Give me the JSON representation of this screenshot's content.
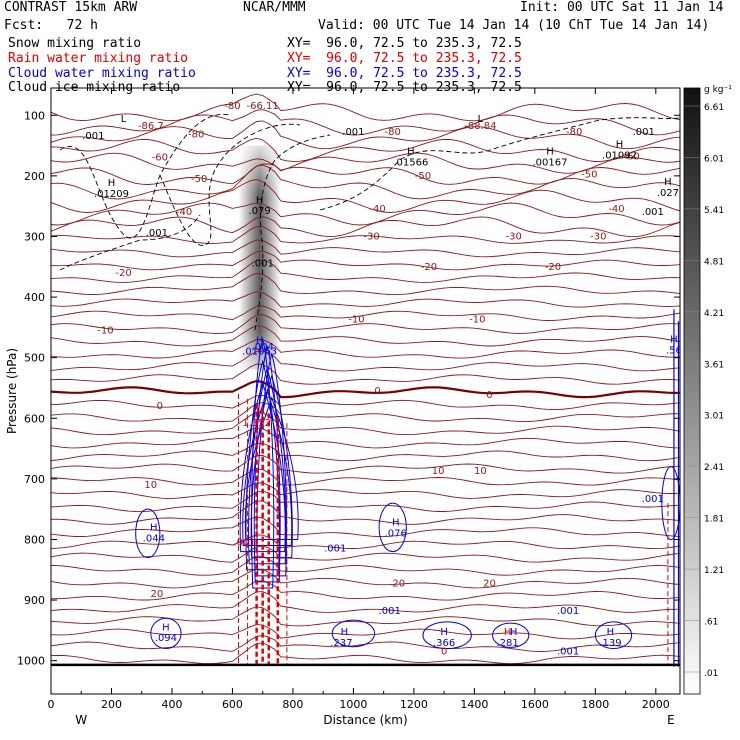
{
  "header": {
    "title": "CONTRAST 15km ARW",
    "center": "NCAR/MMM",
    "init": "Init: 00 UTC Sat 11 Jan 14",
    "fcst": "Fcst:   72 h",
    "valid": "Valid: 00 UTC Tue 14 Jan 14 (10 ChT Tue 14 Jan 14)"
  },
  "fields": [
    {
      "name": "Snow mixing ratio",
      "xy": "XY=  96.0, 72.5 to 235.3, 72.5",
      "color": "#000000"
    },
    {
      "name": "Rain water mixing ratio",
      "xy": "XY=  96.0, 72.5 to 235.3, 72.5",
      "color": "#e00000"
    },
    {
      "name": "Cloud water mixing ratio",
      "xy": "XY=  96.0, 72.5 to 235.3, 72.5",
      "color": "#0000e0"
    },
    {
      "name": "Cloud ice mixing ratio",
      "xy": "XY=  96.0, 72.5 to 235.3, 72.5",
      "color": "#000000"
    }
  ],
  "colors": {
    "temp": "#8b1a1a",
    "temp_zero": "#7a0000",
    "rain": "#e00000",
    "cloud": "#0000e0",
    "snow": "#000000",
    "ground": "#000000"
  },
  "chart_data": {
    "type": "cross-section contour",
    "xlabel": "Distance (km)",
    "ylabel": "Pressure (hPa)",
    "xlim": [
      0,
      2080
    ],
    "ylim": [
      1055,
      55
    ],
    "x_ticks": [
      0,
      200,
      400,
      600,
      800,
      1000,
      1200,
      1400,
      1600,
      1800,
      2000
    ],
    "y_ticks": [
      100,
      200,
      300,
      400,
      500,
      600,
      700,
      800,
      900,
      1000
    ],
    "end_labels": {
      "left": "W",
      "right": "E"
    },
    "colorbar": {
      "unit": "g kg⁻¹",
      "ticks": [
        ".01",
        ".61",
        "1.21",
        "1.81",
        "2.41",
        "3.01",
        "3.61",
        "4.21",
        "4.81",
        "5.41",
        "6.01",
        "6.61"
      ]
    },
    "temperature_labels": [
      {
        "text": "-86.7",
        "x": 330,
        "p": 118
      },
      {
        "text": "-80",
        "x": 600,
        "p": 85
      },
      {
        "text": "-80",
        "x": 480,
        "p": 132
      },
      {
        "text": "-66.11",
        "x": 700,
        "p": 85
      },
      {
        "text": "-88.84",
        "x": 1420,
        "p": 118
      },
      {
        "text": "-80",
        "x": 1130,
        "p": 128
      },
      {
        "text": "-80",
        "x": 1730,
        "p": 128
      },
      {
        "text": "-60",
        "x": 360,
        "p": 170
      },
      {
        "text": "-60",
        "x": 1920,
        "p": 168
      },
      {
        "text": "-50",
        "x": 490,
        "p": 205
      },
      {
        "text": "-50",
        "x": 1230,
        "p": 200
      },
      {
        "text": "-50",
        "x": 1780,
        "p": 198
      },
      {
        "text": "-40",
        "x": 440,
        "p": 260
      },
      {
        "text": "-40",
        "x": 1080,
        "p": 255
      },
      {
        "text": "-40",
        "x": 1870,
        "p": 255
      },
      {
        "text": "-30",
        "x": 1060,
        "p": 300
      },
      {
        "text": "-30",
        "x": 1530,
        "p": 300
      },
      {
        "text": "-30",
        "x": 1810,
        "p": 300
      },
      {
        "text": "-20",
        "x": 240,
        "p": 360
      },
      {
        "text": "-20",
        "x": 1250,
        "p": 350
      },
      {
        "text": "-20",
        "x": 1660,
        "p": 350
      },
      {
        "text": "-10",
        "x": 180,
        "p": 455
      },
      {
        "text": "-10",
        "x": 1010,
        "p": 437
      },
      {
        "text": "-10",
        "x": 1410,
        "p": 437
      },
      {
        "text": "0",
        "x": 360,
        "p": 580
      },
      {
        "text": "0",
        "x": 1080,
        "p": 555
      },
      {
        "text": "0",
        "x": 1450,
        "p": 562
      },
      {
        "text": "10",
        "x": 330,
        "p": 710
      },
      {
        "text": "10",
        "x": 1280,
        "p": 687
      },
      {
        "text": "10",
        "x": 1420,
        "p": 687
      },
      {
        "text": "20",
        "x": 350,
        "p": 890
      },
      {
        "text": "20",
        "x": 1150,
        "p": 873
      },
      {
        "text": "20",
        "x": 1450,
        "p": 873
      }
    ],
    "snow_labels": [
      {
        "text": ".001",
        "x": 140,
        "p": 134
      },
      {
        "text": ".001",
        "x": 1000,
        "p": 128
      },
      {
        "text": ".001",
        "x": 1960,
        "p": 128
      },
      {
        "text": ".001",
        "x": 350,
        "p": 294
      },
      {
        "text": ".001",
        "x": 1990,
        "p": 260
      },
      {
        "text": ".001",
        "x": 700,
        "p": 345
      },
      {
        "text": "H",
        "x": 200,
        "p": 212
      },
      {
        "text": ".01209",
        "x": 200,
        "p": 230
      },
      {
        "text": "H",
        "x": 1190,
        "p": 160
      },
      {
        "text": ".01566",
        "x": 1190,
        "p": 178
      },
      {
        "text": "H",
        "x": 1650,
        "p": 160
      },
      {
        "text": ".00167",
        "x": 1650,
        "p": 178
      },
      {
        "text": "H",
        "x": 1880,
        "p": 148
      },
      {
        "text": ".01092",
        "x": 1880,
        "p": 166
      },
      {
        "text": "H",
        "x": 2040,
        "p": 210
      },
      {
        "text": ".027",
        "x": 2040,
        "p": 228
      },
      {
        "text": "H",
        "x": 690,
        "p": 240
      },
      {
        "text": ".079",
        "x": 690,
        "p": 258
      },
      {
        "text": "L",
        "x": 240,
        "p": 106
      },
      {
        "text": "L",
        "x": 1420,
        "p": 106
      }
    ],
    "cloud_labels": [
      {
        "text": "H",
        "x": 340,
        "p": 780
      },
      {
        "text": ".044",
        "x": 340,
        "p": 798
      },
      {
        "text": "H",
        "x": 380,
        "p": 945
      },
      {
        "text": ".094",
        "x": 380,
        "p": 963
      },
      {
        "text": ".001",
        "x": 940,
        "p": 815
      },
      {
        "text": "H",
        "x": 1140,
        "p": 772
      },
      {
        "text": ".076",
        "x": 1140,
        "p": 790
      },
      {
        "text": ".001",
        "x": 1120,
        "p": 918
      },
      {
        "text": "H",
        "x": 970,
        "p": 953
      },
      {
        "text": ".237",
        "x": 960,
        "p": 971
      },
      {
        "text": "H",
        "x": 1300,
        "p": 953
      },
      {
        "text": ".366",
        "x": 1300,
        "p": 971
      },
      {
        "text": "H",
        "x": 1530,
        "p": 953
      },
      {
        "text": ".281",
        "x": 1510,
        "p": 971
      },
      {
        "text": ".001",
        "x": 1710,
        "p": 918
      },
      {
        "text": ".001",
        "x": 1710,
        "p": 985
      },
      {
        "text": "H",
        "x": 1850,
        "p": 953
      },
      {
        "text": ".139",
        "x": 1850,
        "p": 971
      },
      {
        "text": ".001",
        "x": 1990,
        "p": 733
      },
      {
        "text": "H",
        "x": 2060,
        "p": 470
      },
      {
        "text": ".56",
        "x": 2060,
        "p": 488
      },
      {
        "text": "H",
        "x": 690,
        "p": 472
      },
      {
        "text": ".01063",
        "x": 690,
        "p": 490
      },
      {
        "text": ".004",
        "x": 700,
        "p": 482
      }
    ],
    "rain_labels": [
      {
        "text": "H",
        "x": 690,
        "p": 590
      },
      {
        "text": "1.352",
        "x": 680,
        "p": 608
      },
      {
        "text": ".001",
        "x": 640,
        "p": 805
      },
      {
        "text": "0",
        "x": 1300,
        "p": 985
      },
      {
        "text": "H",
        "x": 1510,
        "p": 953
      }
    ]
  }
}
